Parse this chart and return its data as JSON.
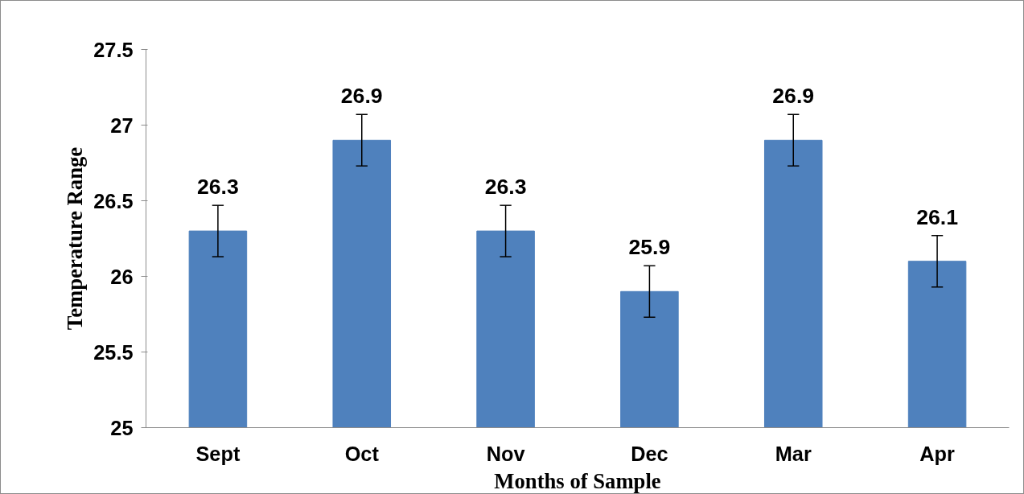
{
  "chart_data": {
    "type": "bar",
    "xlabel": "Months of Sample",
    "ylabel": "Temperature Range",
    "categories": [
      "Sept",
      "Oct",
      "Nov",
      "Dec",
      "Mar",
      "Apr"
    ],
    "values": [
      26.3,
      26.9,
      26.3,
      25.9,
      26.9,
      26.1
    ],
    "errors": [
      0.17,
      0.17,
      0.17,
      0.17,
      0.17,
      0.17
    ],
    "color": "#4f81bd",
    "ylim": [
      25,
      27.5
    ],
    "yticks": [
      25,
      25.5,
      26,
      26.5,
      27,
      27.5
    ],
    "data_labels": true,
    "grid": false
  }
}
